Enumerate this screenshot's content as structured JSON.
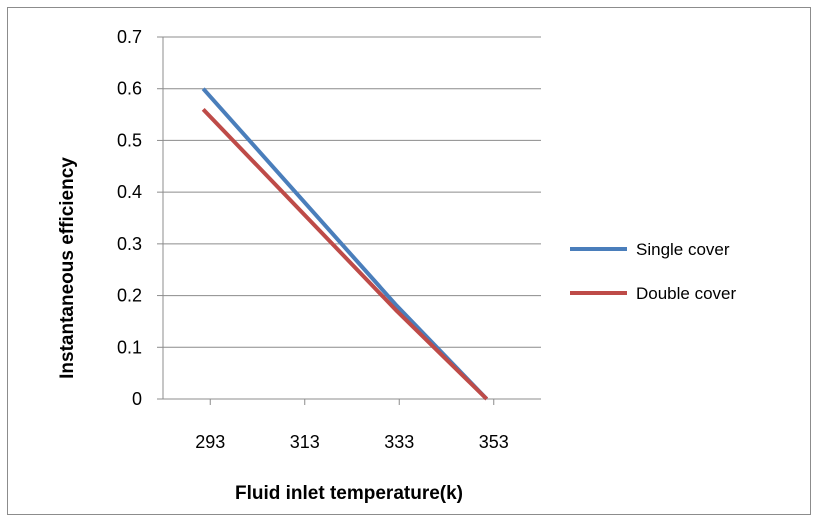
{
  "chart_data": {
    "type": "line",
    "title": "",
    "xlabel": "Fluid inlet temperature(k)",
    "ylabel": "Instantaneous  efficiency",
    "categories": [
      "293",
      "313",
      "333",
      "353"
    ],
    "x_numeric": [
      293,
      313,
      333,
      353
    ],
    "ylim": [
      0,
      0.7
    ],
    "yticks": [
      0,
      0.1,
      0.2,
      0.3,
      0.4,
      0.5,
      0.6,
      0.7
    ],
    "grid": true,
    "legend_position": "right",
    "series": [
      {
        "name": "Single cover",
        "color": "#4a7ebb",
        "points": [
          [
            291.5,
            0.6
          ],
          [
            332.5,
            0.18
          ],
          [
            351.5,
            0.0
          ]
        ]
      },
      {
        "name": "Double cover",
        "color": "#be4b48",
        "points": [
          [
            291.5,
            0.56
          ],
          [
            332.5,
            0.17
          ],
          [
            351.5,
            0.0
          ]
        ]
      }
    ]
  }
}
